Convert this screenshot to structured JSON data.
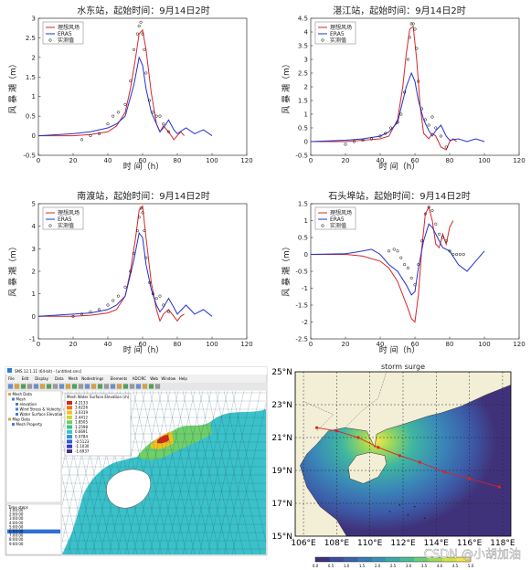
{
  "legend_labels": [
    "理想风场",
    "ERA5",
    "实测值"
  ],
  "colors": {
    "model": "#d62728",
    "era5": "#2233cc",
    "obs": "#000000"
  },
  "chart_data": [
    {
      "type": "line",
      "title": "水东站，起始时间：9月14日2时",
      "xlabel": "时 间（h）",
      "ylabel": "风 暴 潮（m）",
      "xlim": [
        0,
        120
      ],
      "ylim": [
        -0.5,
        3
      ],
      "xticks": [
        0,
        20,
        40,
        60,
        80,
        100,
        120
      ],
      "yticks": [
        -0.5,
        0,
        0.5,
        1,
        1.5,
        2,
        2.5,
        3
      ],
      "series": [
        {
          "name": "理想风场",
          "x": [
            0,
            20,
            30,
            40,
            45,
            50,
            53,
            56,
            58,
            60,
            62,
            65,
            68,
            70,
            72,
            75,
            78,
            80,
            82,
            84
          ],
          "y": [
            0,
            0,
            0.03,
            0.1,
            0.25,
            0.6,
            1.2,
            2.0,
            2.6,
            2.7,
            2.2,
            1.1,
            0.3,
            0.1,
            0.25,
            0.1,
            -0.1,
            0.0,
            0.1,
            0.0
          ]
        },
        {
          "name": "ERA5",
          "x": [
            0,
            20,
            30,
            40,
            45,
            50,
            55,
            58,
            60,
            62,
            65,
            68,
            70,
            72,
            75,
            78,
            80,
            85,
            90,
            95,
            100
          ],
          "y": [
            0,
            0.05,
            0.1,
            0.2,
            0.3,
            0.5,
            1.3,
            2.0,
            1.8,
            1.2,
            0.6,
            0.3,
            0.1,
            0.2,
            0.4,
            0.15,
            0.05,
            0.2,
            0.05,
            0.15,
            0.0
          ]
        },
        {
          "name": "实测值",
          "x": [
            25,
            30,
            35,
            40,
            43,
            46,
            50,
            53,
            55,
            57,
            58,
            59,
            60,
            61,
            62,
            64,
            66,
            68,
            70,
            72,
            75
          ],
          "y": [
            -0.1,
            0.0,
            0.05,
            0.3,
            0.5,
            0.6,
            0.8,
            1.4,
            2.2,
            2.6,
            2.8,
            2.9,
            2.6,
            2.2,
            1.6,
            0.9,
            0.6,
            0.5,
            0.5,
            0.3,
            0.1
          ]
        }
      ]
    },
    {
      "type": "line",
      "title": "湛江站，起始时间：9月14日2时",
      "xlabel": "时 间（h）",
      "ylabel": "风 暴 潮（m）",
      "xlim": [
        0,
        120
      ],
      "ylim": [
        -0.5,
        4.5
      ],
      "xticks": [
        0,
        20,
        40,
        60,
        80,
        100,
        120
      ],
      "yticks": [
        -0.5,
        0,
        0.5,
        1,
        1.5,
        2,
        2.5,
        3,
        3.5,
        4,
        4.5
      ],
      "series": [
        {
          "name": "理想风场",
          "x": [
            0,
            20,
            30,
            40,
            45,
            50,
            53,
            55,
            57,
            59,
            61,
            63,
            65,
            68,
            70,
            72,
            75,
            78,
            80,
            82,
            84
          ],
          "y": [
            0,
            0,
            0.05,
            0.1,
            0.2,
            0.8,
            2.0,
            3.2,
            4.1,
            4.2,
            3.0,
            1.3,
            0.3,
            0.1,
            0.3,
            0.2,
            -0.2,
            -0.3,
            0.0,
            0.1,
            0.0
          ]
        },
        {
          "name": "ERA5",
          "x": [
            0,
            20,
            30,
            40,
            45,
            50,
            55,
            58,
            60,
            62,
            65,
            68,
            70,
            72,
            75,
            78,
            80,
            85,
            90,
            95,
            100
          ],
          "y": [
            0,
            0.05,
            0.1,
            0.2,
            0.35,
            0.7,
            2.0,
            2.5,
            2.2,
            1.5,
            0.8,
            0.4,
            0.2,
            0.4,
            0.6,
            0.2,
            0.05,
            0.1,
            0.0,
            0.1,
            0.0
          ]
        },
        {
          "name": "实测值",
          "x": [
            20,
            25,
            30,
            35,
            40,
            43,
            46,
            50,
            52,
            54,
            56,
            57,
            58,
            59,
            60,
            61,
            62,
            64,
            66,
            68,
            70,
            72,
            75,
            78
          ],
          "y": [
            -0.1,
            0.0,
            0.05,
            0.1,
            0.2,
            0.3,
            0.5,
            0.7,
            1.0,
            1.8,
            3.0,
            3.8,
            4.3,
            4.3,
            4.1,
            3.4,
            2.2,
            1.2,
            0.8,
            0.6,
            0.9,
            0.5,
            0.2,
            -0.2
          ]
        }
      ]
    },
    {
      "type": "line",
      "title": "南渡站，起始时间：9月14日2时",
      "xlabel": "时 间（h）",
      "ylabel": "风 暴 潮（m）",
      "xlim": [
        0,
        120
      ],
      "ylim": [
        -1,
        5
      ],
      "xticks": [
        0,
        20,
        40,
        60,
        80,
        100,
        120
      ],
      "yticks": [
        -1,
        0,
        1,
        2,
        3,
        4,
        5
      ],
      "series": [
        {
          "name": "理想风场",
          "x": [
            0,
            20,
            30,
            40,
            45,
            50,
            53,
            56,
            58,
            60,
            62,
            65,
            68,
            70,
            72,
            75,
            78,
            80,
            82,
            84
          ],
          "y": [
            0,
            0,
            0.05,
            0.15,
            0.3,
            0.9,
            2.0,
            3.5,
            4.7,
            4.9,
            3.5,
            1.5,
            0.3,
            -0.2,
            0.1,
            0.3,
            0.0,
            -0.2,
            0.0,
            0.1
          ]
        },
        {
          "name": "ERA5",
          "x": [
            0,
            20,
            30,
            40,
            45,
            50,
            55,
            58,
            60,
            62,
            65,
            68,
            70,
            72,
            75,
            78,
            80,
            85,
            90,
            95,
            100
          ],
          "y": [
            0,
            0.1,
            0.15,
            0.3,
            0.5,
            0.9,
            2.5,
            3.7,
            3.5,
            2.3,
            1.2,
            0.5,
            0.2,
            0.4,
            0.8,
            0.4,
            0.1,
            0.5,
            0.1,
            0.3,
            0.0
          ]
        },
        {
          "name": "实测值",
          "x": [
            20,
            25,
            30,
            35,
            40,
            43,
            46,
            50,
            53,
            55,
            57,
            58,
            59,
            60,
            61,
            62,
            64,
            66,
            68,
            70,
            72,
            75
          ],
          "y": [
            0.0,
            0.1,
            0.2,
            0.3,
            0.5,
            0.7,
            0.9,
            1.3,
            2.0,
            2.8,
            3.8,
            4.4,
            4.8,
            4.6,
            3.8,
            2.6,
            1.5,
            1.0,
            0.8,
            0.9,
            0.5,
            0.2
          ]
        }
      ]
    },
    {
      "type": "line",
      "title": "石头埠站，起始时间：9月14日2时",
      "xlabel": "时 间（h）",
      "ylabel": "风 暴 潮（m）",
      "xlim": [
        0,
        120
      ],
      "ylim": [
        -2.5,
        1.5
      ],
      "xticks": [
        0,
        20,
        40,
        60,
        80,
        100,
        120
      ],
      "yticks": [
        -2.5,
        -2,
        -1.5,
        -1,
        -0.5,
        0,
        0.5,
        1,
        1.5
      ],
      "series": [
        {
          "name": "理想风场",
          "x": [
            0,
            20,
            30,
            40,
            45,
            50,
            53,
            56,
            58,
            60,
            62,
            64,
            66,
            68,
            70,
            72,
            74,
            76,
            78,
            80,
            82
          ],
          "y": [
            0,
            0,
            -0.05,
            -0.2,
            -0.4,
            -0.8,
            -1.2,
            -1.6,
            -1.9,
            -2.0,
            -1.2,
            0.2,
            1.2,
            1.4,
            1.0,
            0.3,
            0.2,
            0.6,
            0.3,
            0.8,
            1.0
          ]
        },
        {
          "name": "ERA5",
          "x": [
            0,
            20,
            30,
            35,
            40,
            45,
            50,
            55,
            58,
            60,
            62,
            65,
            68,
            70,
            73,
            76,
            80,
            85,
            90,
            95,
            100
          ],
          "y": [
            0,
            0.02,
            0.1,
            0.15,
            0.0,
            -0.3,
            -0.5,
            -0.9,
            -1.2,
            -1.1,
            -0.4,
            0.4,
            0.9,
            0.8,
            0.5,
            0.2,
            0.1,
            -0.3,
            -0.5,
            -0.2,
            0.1
          ]
        },
        {
          "name": "实测值",
          "x": [
            45,
            48,
            50,
            52,
            54,
            56,
            58,
            60,
            62,
            64,
            66,
            68,
            70,
            72,
            74,
            76,
            78,
            80,
            82,
            84,
            86,
            88
          ],
          "y": [
            0.1,
            0.15,
            0.1,
            -0.1,
            -0.3,
            -0.4,
            -0.7,
            -0.9,
            -0.3,
            0.4,
            1.2,
            1.4,
            1.3,
            0.9,
            0.6,
            0.5,
            0.4,
            0.1,
            0.0,
            0.0,
            0.0,
            0.0
          ]
        }
      ]
    }
  ],
  "software": {
    "titlebar": "SMS 12.1.11 (64-bit) - [untitled.sms]",
    "menu": [
      "File",
      "Edit",
      "Display",
      "Data",
      "Mesh",
      "Nodestrings",
      "Elements",
      "ADCIRC",
      "Web",
      "Window",
      "Help"
    ],
    "tree": [
      "Mesh Data",
      "Mesh",
      "elevation",
      "Wind Stress & Velocity (TS)",
      "Water Surface Elevation",
      "Map Data",
      "Mesh Property"
    ],
    "legend_title": "Mesh Water Surface Elevation (m)",
    "legend_values": [
      "4.2133",
      "3.6226",
      "3.0319",
      "2.4412",
      "1.8505",
      "1.2598",
      "0.6691",
      "0.0784",
      "-0.5123",
      "-1.1030",
      "-1.6937"
    ],
    "time_steps_label": "Time steps",
    "time_steps": [
      "1:00:00",
      "2:00:00",
      "3:00:00",
      "4:00:00",
      "5:00:00",
      "6:00:00",
      "7:00:00",
      "8:00:00",
      "9:00:00"
    ],
    "selected_time_index": 5
  },
  "map": {
    "title": "storm surge",
    "lon_ticks": [
      "106°E",
      "108°E",
      "110°E",
      "112°E",
      "114°E",
      "116°E",
      "118°E"
    ],
    "lat_ticks": [
      "25°N",
      "23°N",
      "21°N",
      "19°N",
      "17°N",
      "15°N"
    ],
    "colorbar_ticks": [
      "0.0",
      "0.5",
      "1.0",
      "1.5",
      "2.0",
      "2.5",
      "3.0",
      "3.5",
      "4.0",
      "4.5",
      "5.0"
    ],
    "track": [
      [
        106.8,
        21.6
      ],
      [
        108,
        21.4
      ],
      [
        109.3,
        21.0
      ],
      [
        110.5,
        20.4
      ],
      [
        111.8,
        19.9
      ],
      [
        113,
        19.5
      ],
      [
        114.5,
        18.9
      ],
      [
        116,
        18.5
      ],
      [
        117.8,
        18.0
      ]
    ],
    "watermark": "CSDN @小胡加油"
  }
}
